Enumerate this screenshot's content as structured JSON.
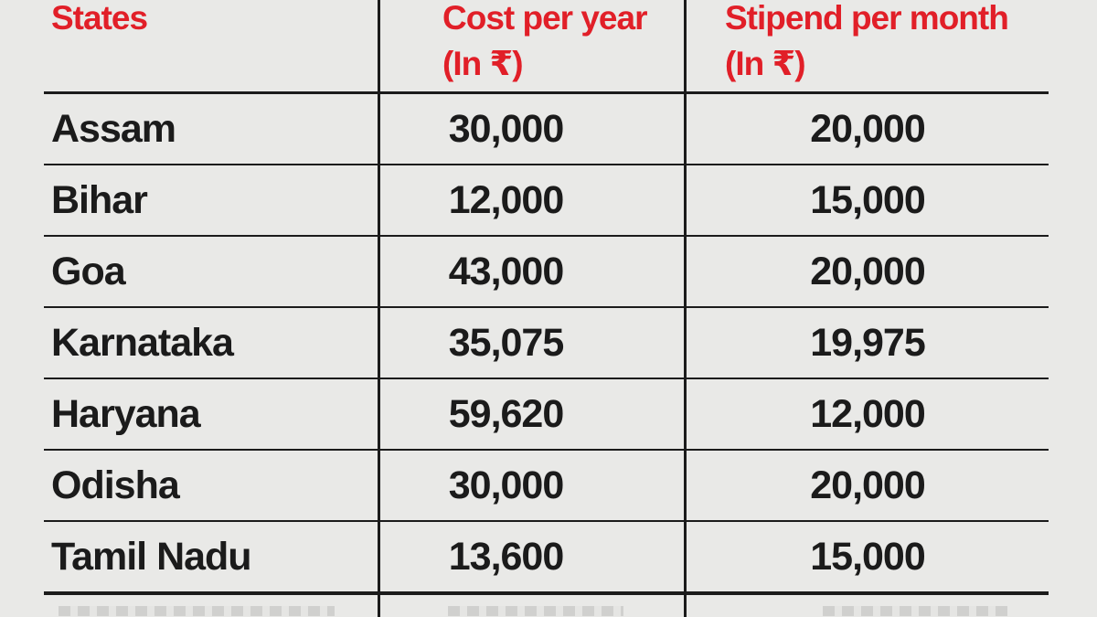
{
  "header": {
    "col1": "States",
    "col2_label": "Cost per year",
    "col2_sublabel": "(In ₹)",
    "col3_label": "Stipend per month",
    "col3_sublabel": "(In ₹)"
  },
  "chart_data": {
    "type": "table",
    "columns": [
      "States",
      "Cost per year (In ₹)",
      "Stipend per month (In ₹)"
    ],
    "rows": [
      {
        "state": "Assam",
        "cost_per_year": "30,000",
        "stipend_per_month": "20,000"
      },
      {
        "state": "Bihar",
        "cost_per_year": "12,000",
        "stipend_per_month": "15,000"
      },
      {
        "state": "Goa",
        "cost_per_year": "43,000",
        "stipend_per_month": "20,000"
      },
      {
        "state": "Karnataka",
        "cost_per_year": "35,075",
        "stipend_per_month": "19,975"
      },
      {
        "state": "Haryana",
        "cost_per_year": "59,620",
        "stipend_per_month": "12,000"
      },
      {
        "state": "Odisha",
        "cost_per_year": "30,000",
        "stipend_per_month": "20,000"
      },
      {
        "state": "Tamil Nadu",
        "cost_per_year": "13,600",
        "stipend_per_month": "15,000"
      }
    ],
    "truncated_partial_row_visible": true
  },
  "colors": {
    "background": "#e9e9e7",
    "header_red": "#e11f28",
    "text": "#1b1b1b",
    "grid_line": "#1b1b1b"
  }
}
